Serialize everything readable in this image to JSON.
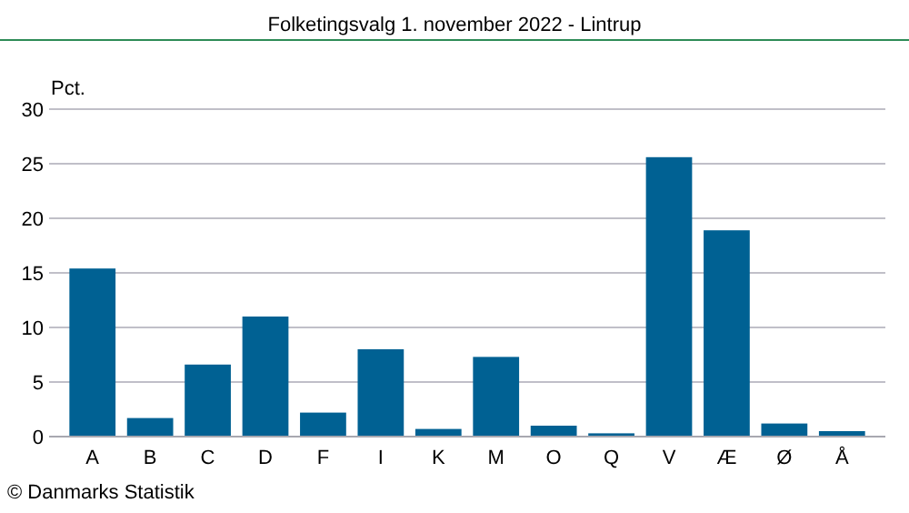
{
  "chart_data": {
    "type": "bar",
    "title": "Folketingsvalg 1. november 2022 - Lintrup",
    "ylabel": "Pct.",
    "categories": [
      "A",
      "B",
      "C",
      "D",
      "F",
      "I",
      "K",
      "M",
      "O",
      "Q",
      "V",
      "Æ",
      "Ø",
      "Å"
    ],
    "values": [
      15.4,
      1.7,
      6.6,
      11.0,
      2.2,
      8.0,
      0.7,
      7.3,
      1.0,
      0.3,
      25.6,
      18.9,
      1.2,
      0.5
    ],
    "color": "#006193",
    "ylim": [
      0,
      30
    ],
    "yticks": [
      0,
      5,
      10,
      15,
      20,
      25,
      30
    ],
    "grid": "y",
    "annotations": [
      "© Danmarks Statistik"
    ]
  }
}
